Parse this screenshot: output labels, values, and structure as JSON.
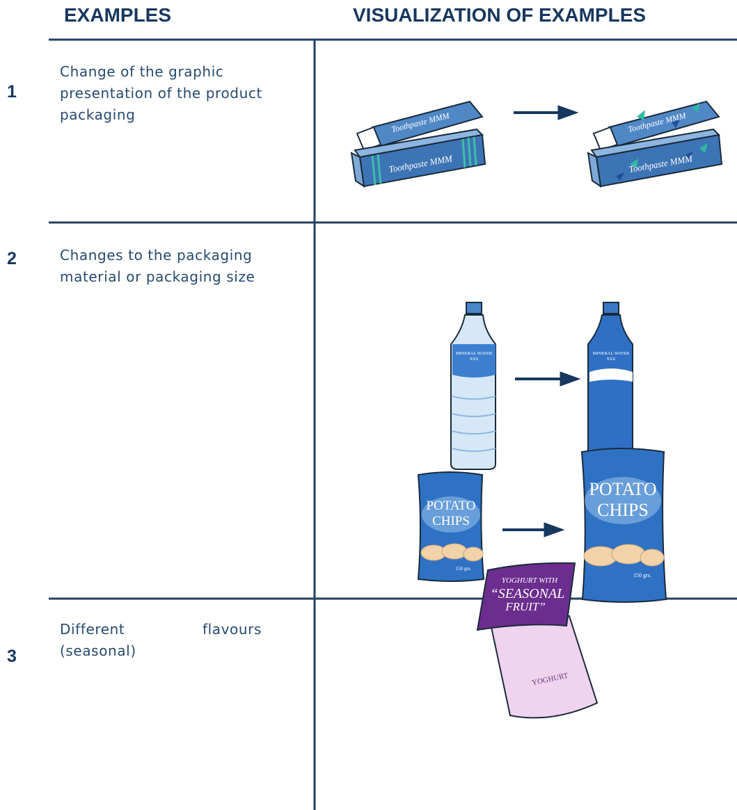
{
  "header": {
    "examples": "EXAMPLES",
    "visualization": "VISUALIZATION OF EXAMPLES"
  },
  "rows": [
    {
      "number": "1",
      "text": "Change of the graphic presentation of the product packaging",
      "illustration_labels": {
        "toothpaste": "Toothpaste MMM"
      }
    },
    {
      "number": "2",
      "text": "Changes to the packaging material or packaging size",
      "illustration_labels": {
        "water_brand": "MINERAL WATER",
        "water_name": "XXX",
        "chips_line1": "POTATO",
        "chips_line2": "CHIPS",
        "chips_weight": "150 grs."
      }
    },
    {
      "number": "3",
      "text": "Different flavours (seasonal)",
      "illustration_labels": {
        "lid_line1": "YOGHURT WITH",
        "lid_line2": "“SEASONAL",
        "lid_line3": "FRUIT”",
        "cup": "YOGHURT"
      }
    }
  ]
}
